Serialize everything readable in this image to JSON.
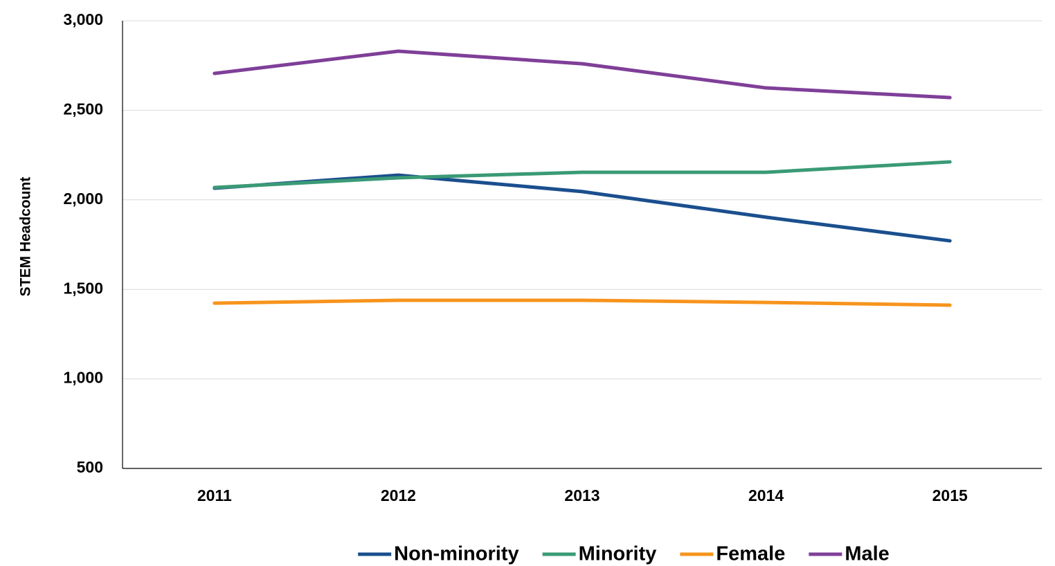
{
  "chart_data": {
    "type": "line",
    "y_label": "STEM  Headcount",
    "categories": [
      "2011",
      "2012",
      "2013",
      "2014",
      "2015"
    ],
    "series": [
      {
        "name": "Non-minority",
        "color": "#1b4f8e",
        "values": [
          2065,
          2138,
          2046,
          1903,
          1771
        ]
      },
      {
        "name": "Minority",
        "color": "#3a9a76",
        "values": [
          2069,
          2123,
          2154,
          2154,
          2212
        ]
      },
      {
        "name": "Female",
        "color": "#f7941d",
        "values": [
          1423,
          1439,
          1439,
          1427,
          1412
        ]
      },
      {
        "name": "Male",
        "color": "#7f3f98",
        "values": [
          2706,
          2830,
          2760,
          2625,
          2571
        ]
      }
    ],
    "ylim": [
      500,
      3000
    ],
    "yticks": [
      500,
      {
        "value": 1000,
        "label": "1,000"
      },
      {
        "value": 1500,
        "label": "1,500"
      },
      {
        "value": 2000,
        "label": "2,000"
      },
      {
        "value": 2500,
        "label": "2,500"
      },
      {
        "value": 3000,
        "label": "3,000"
      }
    ],
    "grid": true,
    "legend": "bottom"
  }
}
